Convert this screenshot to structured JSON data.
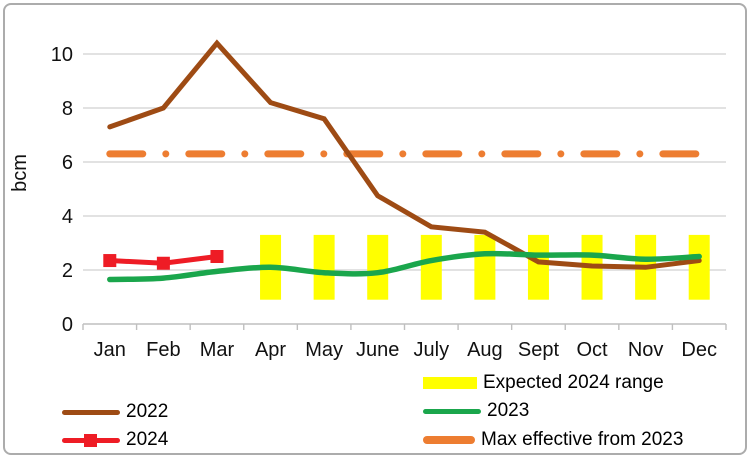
{
  "chart_data": {
    "type": "line",
    "title": "",
    "xlabel": "",
    "ylabel": "bcm",
    "categories": [
      "Jan",
      "Feb",
      "Mar",
      "Apr",
      "May",
      "June",
      "July",
      "Aug",
      "Sept",
      "Oct",
      "Nov",
      "Dec"
    ],
    "y_ticks": [
      0,
      2,
      4,
      6,
      8,
      10
    ],
    "ylim": [
      0,
      11
    ],
    "grid": true,
    "legend_position": "bottom",
    "series": [
      {
        "name": "2022",
        "type": "line",
        "color": "#9E4B14",
        "width": 5,
        "values": [
          7.3,
          8.0,
          10.4,
          8.2,
          7.6,
          4.75,
          3.6,
          3.4,
          2.3,
          2.15,
          2.1,
          2.35
        ]
      },
      {
        "name": "2023",
        "type": "line",
        "smooth": true,
        "color": "#1AA64C",
        "width": 5.5,
        "values": [
          1.65,
          1.7,
          1.95,
          2.1,
          1.9,
          1.9,
          2.35,
          2.6,
          2.55,
          2.55,
          2.4,
          2.5
        ]
      },
      {
        "name": "2024",
        "type": "line",
        "marker": "square",
        "marker_size": 13,
        "color": "#EE1C25",
        "width": 5,
        "values": [
          2.35,
          2.25,
          2.5
        ]
      },
      {
        "name": "Max effective from 2023",
        "type": "constant-line",
        "style": "dash-dot",
        "color": "#ED7D31",
        "width": 7,
        "value": 6.3
      }
    ],
    "range_band": {
      "name": "Expected 2024 range",
      "color": "#FFFF00",
      "low": 0.9,
      "high": 3.3,
      "first_month": "Apr",
      "last_month": "Dec"
    },
    "colors": {
      "gridline": "#D9D9D9",
      "axis_line": "#BFBFBF",
      "text": "#111111"
    }
  }
}
